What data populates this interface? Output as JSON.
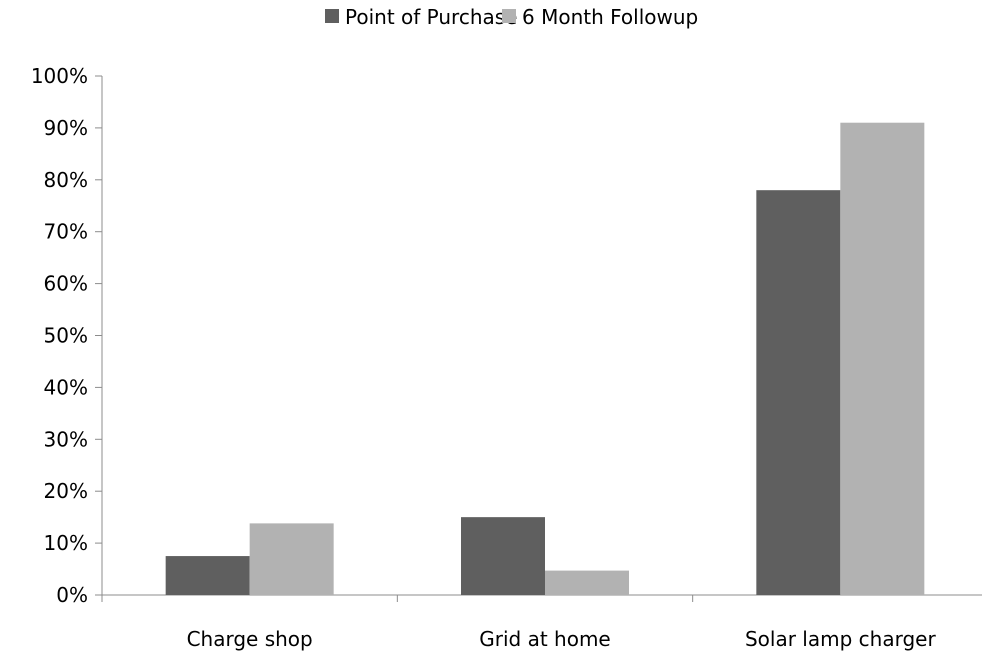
{
  "chart_data": {
    "type": "bar",
    "title": "",
    "xlabel": "",
    "ylabel": "",
    "categories": [
      "Charge shop",
      "Grid at home",
      "Solar lamp charger"
    ],
    "series": [
      {
        "name": "Point of Purchase",
        "color": "#5f5f5f",
        "values": [
          7.5,
          15.0,
          78.0
        ]
      },
      {
        "name": "6 Month Followup",
        "color": "#b2b2b2",
        "values": [
          13.8,
          4.7,
          91.0
        ]
      }
    ],
    "ylim": [
      0,
      100
    ],
    "yticks": [
      0,
      10,
      20,
      30,
      40,
      50,
      60,
      70,
      80,
      90,
      100
    ],
    "ytick_labels": [
      "0%",
      "10%",
      "20%",
      "30%",
      "40%",
      "50%",
      "60%",
      "70%",
      "80%",
      "90%",
      "100%"
    ],
    "grid": false,
    "legend_position": "top-center"
  }
}
